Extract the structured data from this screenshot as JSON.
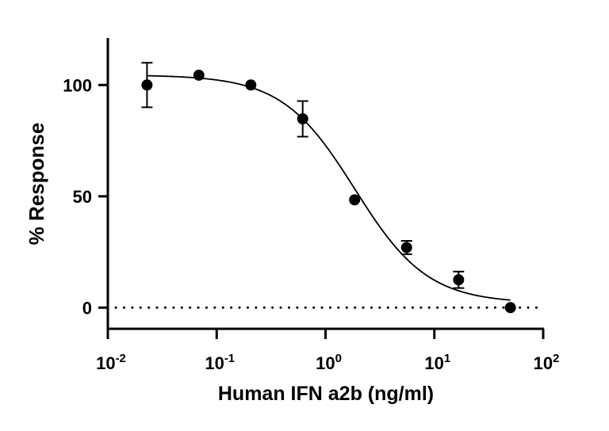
{
  "chart_data": {
    "type": "scatter",
    "title": "",
    "xlabel": "Human IFN a2b (ng/ml)",
    "ylabel": "% Response",
    "x_scale": "log10",
    "xlim": [
      0.01,
      100
    ],
    "ylim": [
      -10,
      120
    ],
    "x_ticks": [
      {
        "base": "10",
        "exp": "-2",
        "value": 0.01
      },
      {
        "base": "10",
        "exp": "-1",
        "value": 0.1
      },
      {
        "base": "10",
        "exp": "0",
        "value": 1
      },
      {
        "base": "10",
        "exp": "1",
        "value": 10
      },
      {
        "base": "10",
        "exp": "2",
        "value": 100
      }
    ],
    "y_ticks": [
      {
        "label": "0",
        "value": 0
      },
      {
        "label": "50",
        "value": 50
      },
      {
        "label": "100",
        "value": 100
      }
    ],
    "grid": false,
    "points": {
      "x": [
        0.0229,
        0.0686,
        0.206,
        0.617,
        1.85,
        5.56,
        16.7,
        50
      ],
      "y": [
        100,
        104.4,
        100,
        84.8,
        48.4,
        27.0,
        12.5,
        0
      ],
      "error": [
        10,
        0,
        0,
        8,
        0,
        3,
        3.7,
        0
      ]
    },
    "fit_curve": {
      "model": "4PL",
      "top": 104.5,
      "bottom": 2,
      "ec50": 1.86,
      "hill_slope": 1.3,
      "x_range": [
        0.0229,
        50
      ]
    },
    "reference_line": {
      "y": 0,
      "style": "dotted"
    },
    "color": "#000000"
  }
}
